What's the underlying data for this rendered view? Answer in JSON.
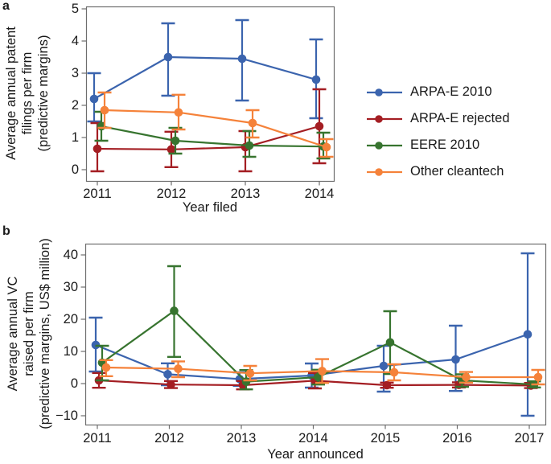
{
  "figure": {
    "panel_a": {
      "panel_label": "a",
      "ylabel_lines": [
        "Average annual patent",
        "filings per firm",
        "(predictive margins)"
      ],
      "xlabel": "Year filed"
    },
    "panel_b": {
      "panel_label": "b",
      "ylabel_lines": [
        "Average annual VC",
        "raised per firm",
        "(predictive margins, US$ million)"
      ],
      "xlabel": "Year announced"
    }
  },
  "legend": {
    "position": "right-of-panel-a",
    "items": [
      {
        "label": "ARPA-E 2010",
        "color": "#3B64AE"
      },
      {
        "label": "ARPA-E rejected",
        "color": "#A41E23"
      },
      {
        "label": "EERE 2010",
        "color": "#37742F"
      },
      {
        "label": "Other cleantech",
        "color": "#F5823A"
      }
    ]
  },
  "colors": {
    "frame": "#6e6e6e",
    "text": "#1a1a1a"
  },
  "chart_data": [
    {
      "id": "a",
      "type": "line",
      "error_bars": true,
      "title": "",
      "xlabel": "Year filed",
      "ylabel": "Average annual patent filings per firm (predictive margins)",
      "x": [
        2011,
        2012,
        2013,
        2014
      ],
      "ylim": [
        -0.35,
        5.05
      ],
      "yticks": [
        0,
        1,
        2,
        3,
        4,
        5
      ],
      "grid": false,
      "legend_position": "right",
      "series": [
        {
          "name": "ARPA-E 2010",
          "color": "#3B64AE",
          "values": [
            2.2,
            3.5,
            3.45,
            2.8
          ],
          "ci_low": [
            1.5,
            2.3,
            2.15,
            1.6
          ],
          "ci_high": [
            3.0,
            4.55,
            4.65,
            4.05
          ]
        },
        {
          "name": "ARPA-E rejected",
          "color": "#A41E23",
          "values": [
            0.65,
            0.63,
            0.7,
            1.35
          ],
          "ci_low": [
            -0.05,
            0.08,
            -0.05,
            0.2
          ],
          "ci_high": [
            1.45,
            1.18,
            1.2,
            2.5
          ]
        },
        {
          "name": "EERE 2010",
          "color": "#37742F",
          "values": [
            1.35,
            0.9,
            0.75,
            0.72
          ],
          "ci_low": [
            0.9,
            0.5,
            0.4,
            0.35
          ],
          "ci_high": [
            1.8,
            1.3,
            1.2,
            1.15
          ]
        },
        {
          "name": "Other cleantech",
          "color": "#F5823A",
          "values": [
            1.85,
            1.78,
            1.45,
            0.7
          ],
          "ci_low": [
            1.3,
            1.25,
            1.0,
            0.4
          ],
          "ci_high": [
            2.4,
            2.33,
            1.85,
            0.95
          ]
        }
      ]
    },
    {
      "id": "b",
      "type": "line",
      "error_bars": true,
      "title": "",
      "xlabel": "Year announced",
      "ylabel": "Average annual VC raised per firm (predictive margins, US$ million)",
      "x": [
        2011,
        2012,
        2013,
        2014,
        2015,
        2016,
        2017
      ],
      "ylim": [
        -12.75,
        43.5
      ],
      "yticks": [
        -10,
        0,
        10,
        20,
        30,
        40
      ],
      "grid": false,
      "series": [
        {
          "name": "ARPA-E 2010",
          "color": "#3B64AE",
          "values": [
            12.0,
            2.9,
            1.4,
            2.5,
            5.5,
            7.5,
            15.3
          ],
          "ci_low": [
            3.75,
            -0.5,
            -0.7,
            -1.25,
            -2.5,
            -2.3,
            -10.0
          ],
          "ci_high": [
            20.5,
            6.3,
            3.5,
            6.25,
            11.75,
            18.0,
            40.5
          ]
        },
        {
          "name": "ARPA-E rejected",
          "color": "#A41E23",
          "values": [
            1.0,
            -0.3,
            -0.5,
            0.9,
            -0.5,
            -0.4,
            -0.6
          ],
          "ci_low": [
            -1.3,
            -1.4,
            -1.8,
            -1.5,
            -1.3,
            -1.2,
            -1.4
          ],
          "ci_high": [
            3.3,
            0.8,
            0.8,
            3.3,
            0.3,
            0.4,
            0.2
          ]
        },
        {
          "name": "EERE 2010",
          "color": "#37742F",
          "values": [
            6.5,
            22.6,
            0.6,
            2.0,
            12.8,
            1.0,
            -0.3
          ],
          "ci_low": [
            1.0,
            8.3,
            -1.8,
            -0.3,
            3.0,
            -1.0,
            -1.2
          ],
          "ci_high": [
            11.75,
            36.5,
            4.2,
            4.3,
            22.5,
            2.9,
            0.7
          ]
        },
        {
          "name": "Other cleantech",
          "color": "#F5823A",
          "values": [
            5.0,
            4.6,
            3.2,
            3.9,
            3.5,
            2.0,
            2.0
          ],
          "ci_low": [
            2.3,
            2.0,
            1.0,
            0.2,
            1.0,
            0.3,
            -0.25
          ],
          "ci_high": [
            7.3,
            6.9,
            5.5,
            7.6,
            6.0,
            3.6,
            4.25
          ]
        }
      ]
    }
  ]
}
